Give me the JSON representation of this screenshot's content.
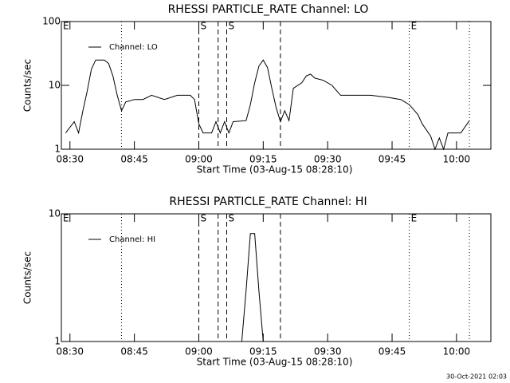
{
  "chart_data": [
    {
      "type": "line",
      "title": "RHESSI PARTICLE_RATE Channel: LO",
      "xlabel": "Start Time (03-Aug-15 08:28:10)",
      "ylabel": "Counts/sec",
      "ylog": true,
      "legend": "upper left",
      "xlim": [
        "08:28",
        "10:08"
      ],
      "xticks": [
        "08:30",
        "08:45",
        "09:00",
        "09:15",
        "09:30",
        "09:45",
        "10:00"
      ],
      "ylim": [
        1,
        100
      ],
      "yticks": [
        1,
        10,
        100
      ],
      "markers": [
        {
          "x": "08:28",
          "label": "E"
        },
        {
          "x": "08:42",
          "style": "dotted"
        },
        {
          "x": "09:00",
          "style": "dashed",
          "label": "S"
        },
        {
          "x": "09:04:30",
          "style": "dashed"
        },
        {
          "x": "09:06:30",
          "style": "dashed",
          "label": "S"
        },
        {
          "x": "09:19",
          "style": "dashed"
        },
        {
          "x": "09:49",
          "style": "dotted",
          "label": "E"
        },
        {
          "x": "10:03",
          "style": "dotted"
        }
      ],
      "x": [
        "08:29",
        "08:31",
        "08:32",
        "08:33",
        "08:34",
        "08:35",
        "08:36",
        "08:38",
        "08:39",
        "08:40",
        "08:41",
        "08:42",
        "08:43",
        "08:45",
        "08:47",
        "08:49",
        "08:52",
        "08:55",
        "08:58",
        "08:59",
        "09:00",
        "09:01",
        "09:03",
        "09:04",
        "09:05",
        "09:06",
        "09:07",
        "09:08",
        "09:11",
        "09:12",
        "09:13",
        "09:14",
        "09:15",
        "09:16",
        "09:17",
        "09:18",
        "09:19",
        "09:20",
        "09:21",
        "09:22",
        "09:24",
        "09:25",
        "09:26",
        "09:27",
        "09:29",
        "09:31",
        "09:33",
        "09:36",
        "09:40",
        "09:44",
        "09:47",
        "09:49",
        "09:51",
        "09:52",
        "09:54",
        "09:55",
        "09:56",
        "09:57",
        "09:58",
        "10:01",
        "10:03"
      ],
      "series": [
        {
          "name": "Channel: LO",
          "color": "#000000",
          "values": [
            1.8,
            2.7,
            1.8,
            4,
            8,
            18,
            25,
            25,
            22,
            14,
            7,
            4,
            5.5,
            6,
            6,
            7,
            6,
            7,
            7,
            6,
            2.5,
            1.8,
            1.8,
            2.7,
            1.8,
            2.7,
            1.8,
            2.7,
            2.8,
            5,
            11,
            20,
            25,
            19,
            9,
            4.5,
            2.7,
            4,
            2.8,
            9,
            11,
            14,
            15,
            13,
            12,
            10,
            7,
            7,
            7,
            6.5,
            6,
            5,
            3.5,
            2.5,
            1.6,
            1,
            1.5,
            1,
            1.8,
            1.8,
            2.8
          ]
        }
      ]
    },
    {
      "type": "line",
      "title": "RHESSI PARTICLE_RATE Channel: HI",
      "xlabel": "Start Time (03-Aug-15 08:28:10)",
      "ylabel": "Counts/sec",
      "ylog": true,
      "legend": "upper left",
      "xlim": [
        "08:28",
        "10:08"
      ],
      "xticks": [
        "08:30",
        "08:45",
        "09:00",
        "09:15",
        "09:30",
        "09:45",
        "10:00"
      ],
      "ylim": [
        1,
        10
      ],
      "yticks": [
        1,
        10
      ],
      "markers": [
        {
          "x": "08:28",
          "label": "E"
        },
        {
          "x": "08:42",
          "style": "dotted"
        },
        {
          "x": "09:00",
          "style": "dashed",
          "label": "S"
        },
        {
          "x": "09:04:30",
          "style": "dashed"
        },
        {
          "x": "09:06:30",
          "style": "dashed",
          "label": "S"
        },
        {
          "x": "09:19",
          "style": "dashed"
        },
        {
          "x": "09:49",
          "style": "dotted",
          "label": "E"
        },
        {
          "x": "10:03",
          "style": "dotted"
        }
      ],
      "x": [
        "09:10",
        "09:11",
        "09:12",
        "09:13",
        "09:14",
        "09:15"
      ],
      "series": [
        {
          "name": "Channel: HI",
          "color": "#000000",
          "values": [
            1,
            2.5,
            7,
            7,
            2.5,
            1
          ]
        }
      ]
    }
  ],
  "footer": "30-Oct-2021 02:03"
}
